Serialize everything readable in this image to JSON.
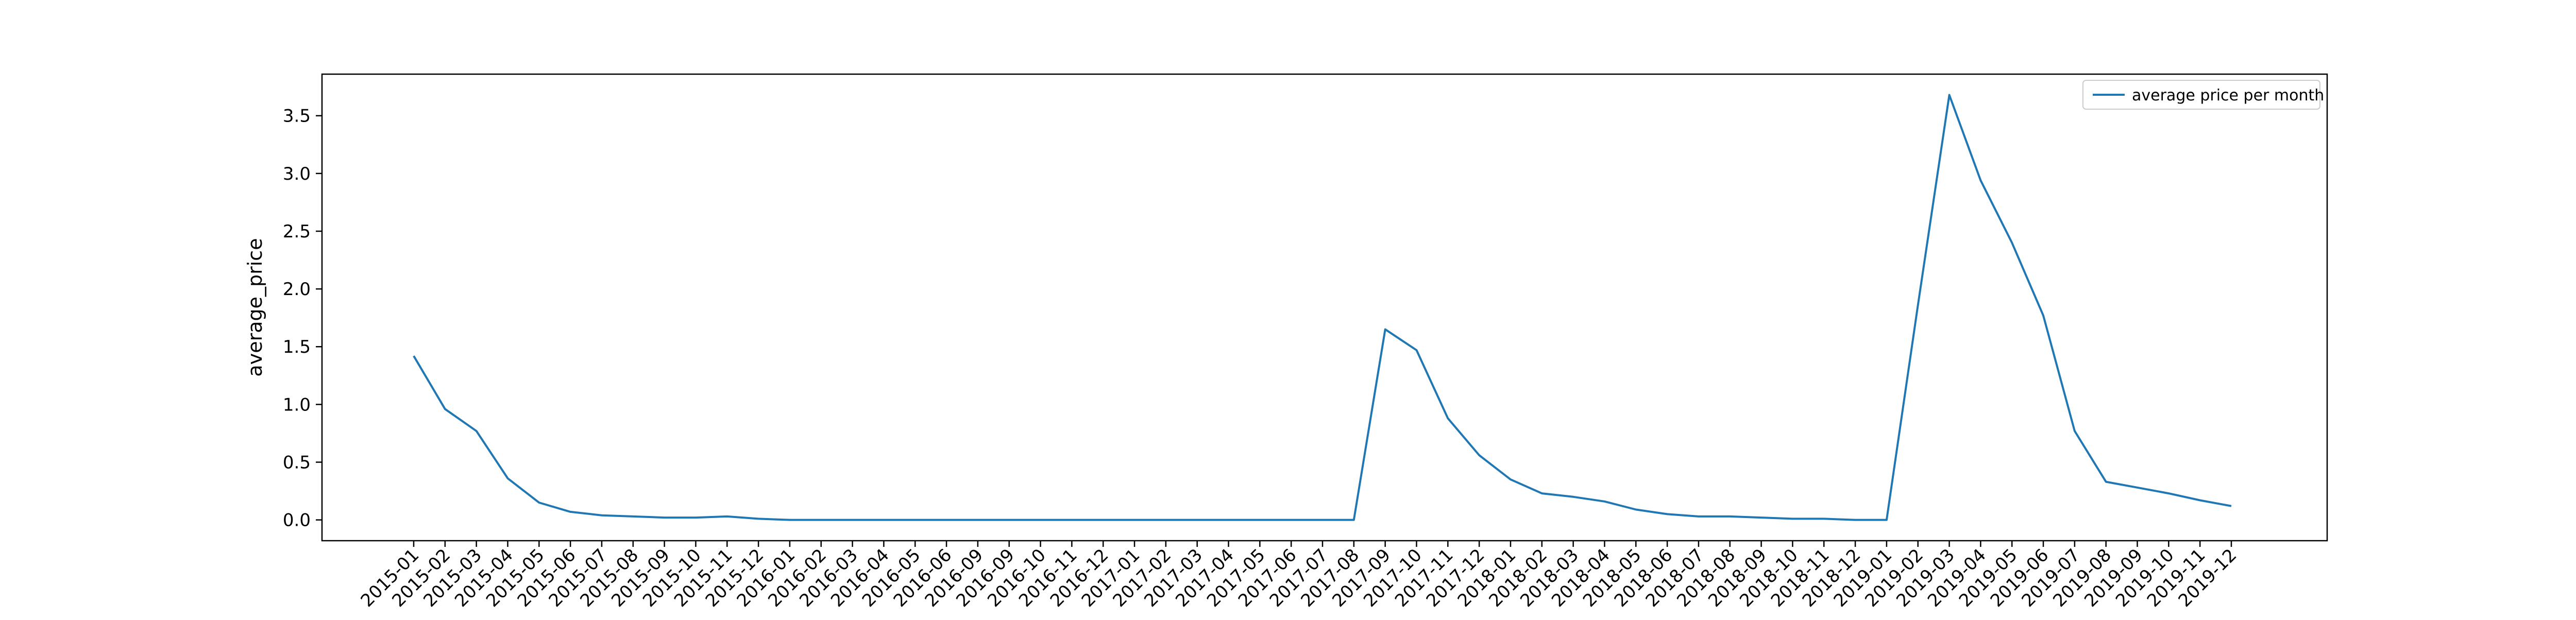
{
  "chart_data": {
    "type": "line",
    "title": "",
    "xlabel": "",
    "ylabel": "average_price",
    "x": [
      "2015-01",
      "2015-02",
      "2015-03",
      "2015-04",
      "2015-05",
      "2015-06",
      "2015-07",
      "2015-08",
      "2015-09",
      "2015-10",
      "2015-11",
      "2015-12",
      "2016-01",
      "2016-02",
      "2016-03",
      "2016-04",
      "2016-05",
      "2016-06",
      "2016-09",
      "2016-09",
      "2016-10",
      "2016-11",
      "2016-12",
      "2017-01",
      "2017-02",
      "2017-03",
      "2017-04",
      "2017-05",
      "2017-06",
      "2017-07",
      "2017-08",
      "2017-09",
      "2017-10",
      "2017-11",
      "2017-12",
      "2018-01",
      "2018-02",
      "2018-03",
      "2018-04",
      "2018-05",
      "2018-06",
      "2018-07",
      "2018-08",
      "2018-09",
      "2018-10",
      "2018-11",
      "2018-12",
      "2019-01",
      "2019-02",
      "2019-03",
      "2019-04",
      "2019-05",
      "2019-06",
      "2019-07",
      "2019-08",
      "2019-09",
      "2019-10",
      "2019-11",
      "2019-12"
    ],
    "series": [
      {
        "name": "average price per month",
        "color": "#1f77b4",
        "values": [
          1.42,
          0.96,
          0.77,
          0.36,
          0.15,
          0.07,
          0.04,
          0.03,
          0.02,
          0.02,
          0.03,
          0.01,
          0,
          0,
          0,
          0,
          0,
          0,
          0,
          0,
          0,
          0,
          0,
          0,
          0,
          0,
          0,
          0,
          0,
          0,
          0,
          1.65,
          1.47,
          0.88,
          0.56,
          0.35,
          0.23,
          0.2,
          0.16,
          0.09,
          0.05,
          0.03,
          0.03,
          0.02,
          0.01,
          0.01,
          0,
          0,
          1.86,
          3.68,
          2.94,
          2.4,
          1.77,
          0.77,
          0.33,
          0.28,
          0.23,
          0.17,
          0.12
        ]
      }
    ],
    "yticks": [
      0.0,
      0.5,
      1.0,
      1.5,
      2.0,
      2.5,
      3.0,
      3.5
    ],
    "ytick_labels": [
      "0.0",
      "0.5",
      "1.0",
      "1.5",
      "2.0",
      "2.5",
      "3.0",
      "3.5"
    ],
    "ylim": [
      -0.18,
      3.86
    ],
    "grid": false,
    "legend_position": "top-right"
  }
}
